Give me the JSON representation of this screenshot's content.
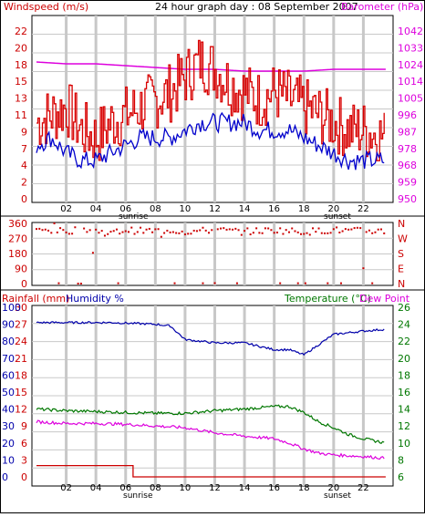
{
  "colors": {
    "wind": "#ff0000",
    "windLine": "#d80000",
    "gust_dark": "#0000cc",
    "barometer": "#dd00dd",
    "rain": "#cc0000",
    "humidity": "#0000aa",
    "temperature": "#007700",
    "dewpoint": "#dd00dd",
    "grid": "#c8c8c8",
    "axisRed": "#cc0000",
    "axisBlue": "#0000aa",
    "axisGreen": "#007700"
  },
  "top": {
    "left_label": "Windspeed (m/s)",
    "title": "24 hour graph day : 08 September 2007",
    "right_label": "Barometer (hPa)",
    "left_ticks": [
      "22",
      "20",
      "18",
      "15",
      "13",
      "11",
      "9",
      "7",
      "4",
      "2",
      "0"
    ],
    "right_ticks": [
      "1042",
      "1033",
      "1024",
      "1014",
      "1005",
      "996",
      "987",
      "978",
      "968",
      "959",
      "950"
    ]
  },
  "mid": {
    "left_ticks": [
      "360",
      "270",
      "180",
      "90",
      "0"
    ],
    "right_ticks": [
      "N",
      "W",
      "S",
      "E",
      "N"
    ]
  },
  "bottom": {
    "rain_label": "Rainfall (mm)",
    "humidity_label": "Humidity %",
    "temp_label": "Temperature (°C)",
    "dew_label": "Dew Point",
    "rain_ticks": [
      "30",
      "27",
      "24",
      "21",
      "18",
      "15",
      "12",
      "9",
      "6",
      "3",
      "0"
    ],
    "humidity_ticks": [
      "100",
      "90",
      "80",
      "70",
      "60",
      "50",
      "40",
      "30",
      "20",
      "10",
      "0"
    ],
    "temp_ticks": [
      "26",
      "24",
      "22",
      "20",
      "18",
      "16",
      "14",
      "12",
      "10",
      "8",
      "6"
    ]
  },
  "x_labels": [
    "02",
    "04",
    "06",
    "08",
    "10",
    "12",
    "14",
    "16",
    "18",
    "20",
    "22"
  ],
  "sunrise_label": "sunrise",
  "sunset_label": "sunset",
  "chart_data": [
    {
      "type": "line",
      "title": "24 hour graph day : 08 September 2007",
      "ylabel": "Windspeed (m/s)",
      "y2label": "Barometer (hPa)",
      "ylim": [
        0,
        22
      ],
      "y2lim": [
        950,
        1042
      ],
      "x_unit": "hour",
      "series": [
        {
          "name": "Windspeed (m/s)",
          "x": [
            0,
            1,
            2,
            3,
            4,
            5,
            6,
            7,
            8,
            9,
            10,
            11,
            12,
            13,
            14,
            15,
            16,
            17,
            18,
            19,
            20,
            21,
            22,
            23.5
          ],
          "values": [
            10,
            11,
            12,
            9,
            8,
            10,
            11,
            12,
            13,
            14,
            16,
            18,
            17,
            15,
            14,
            13,
            14,
            13,
            12,
            11,
            10,
            9,
            9,
            8
          ]
        },
        {
          "x": [
            0,
            1,
            2,
            3,
            4,
            5,
            6,
            7,
            8,
            9,
            10,
            11,
            12,
            13,
            14,
            15,
            16,
            17,
            18,
            19,
            20,
            21,
            22,
            23.5
          ],
          "values": [
            7,
            8,
            6,
            5,
            5,
            6,
            7,
            8,
            8,
            8,
            9,
            10,
            10,
            10,
            10,
            9,
            9,
            9,
            8,
            7,
            6,
            5,
            5,
            5
          ]
        },
        {
          "name": "Barometer (hPa)",
          "x": [
            0,
            2,
            4,
            6,
            8,
            10,
            12,
            14,
            16,
            18,
            20,
            22,
            23.5
          ],
          "values": [
            1025,
            1024,
            1024,
            1023,
            1022,
            1021,
            1021,
            1020,
            1020,
            1020,
            1021,
            1021,
            1021
          ]
        }
      ]
    },
    {
      "type": "scatter",
      "ylim": [
        0,
        360
      ],
      "series": [
        {
          "x": [
            0,
            1,
            2,
            3,
            4,
            5,
            6,
            7,
            8,
            9,
            10,
            11,
            12,
            13,
            14,
            15,
            16,
            17,
            18,
            19,
            20,
            21,
            22,
            23.5
          ],
          "values": [
            315,
            320,
            310,
            330,
            315,
            300,
            320,
            315,
            315,
            320,
            310,
            315,
            320,
            315,
            310,
            315,
            320,
            315,
            310,
            315,
            320,
            315,
            315,
            315
          ]
        }
      ]
    },
    {
      "type": "line",
      "ylabel": "Rainfall (mm)",
      "y2label": "Temperature (°C)",
      "ylim": [
        0,
        30
      ],
      "y2lim": [
        6,
        26
      ],
      "series": [
        {
          "name": "Rainfall (mm)",
          "x": [
            0,
            6.5,
            6.5,
            23.5
          ],
          "values": [
            2,
            2,
            0,
            0
          ]
        },
        {
          "name": "Humidity %",
          "x": [
            0,
            5,
            8,
            9,
            10,
            12,
            14,
            16,
            17,
            18,
            19,
            20,
            21,
            22,
            23.5
          ],
          "values": [
            91,
            91,
            90,
            89,
            81,
            79,
            79,
            75,
            75,
            72,
            78,
            84,
            85,
            86,
            87
          ]
        },
        {
          "name": "Temperature (°C)",
          "x": [
            0,
            2,
            4,
            6,
            8,
            10,
            12,
            14,
            16,
            17,
            18,
            19,
            20,
            21,
            22,
            23.5
          ],
          "values": [
            14,
            13.8,
            13.7,
            13.6,
            13.5,
            13.5,
            13.8,
            14,
            14.3,
            14.3,
            13.6,
            12.5,
            11.8,
            11,
            10.5,
            10
          ]
        },
        {
          "name": "Dew Point",
          "x": [
            0,
            2,
            4,
            6,
            8,
            10,
            12,
            14,
            16,
            17,
            18,
            19,
            20,
            21,
            22,
            23.5
          ],
          "values": [
            12.5,
            12.3,
            12.3,
            12.2,
            12,
            11.8,
            11.2,
            10.8,
            10.5,
            10,
            9.3,
            8.8,
            8.6,
            8.5,
            8.4,
            8.2
          ]
        }
      ]
    }
  ]
}
